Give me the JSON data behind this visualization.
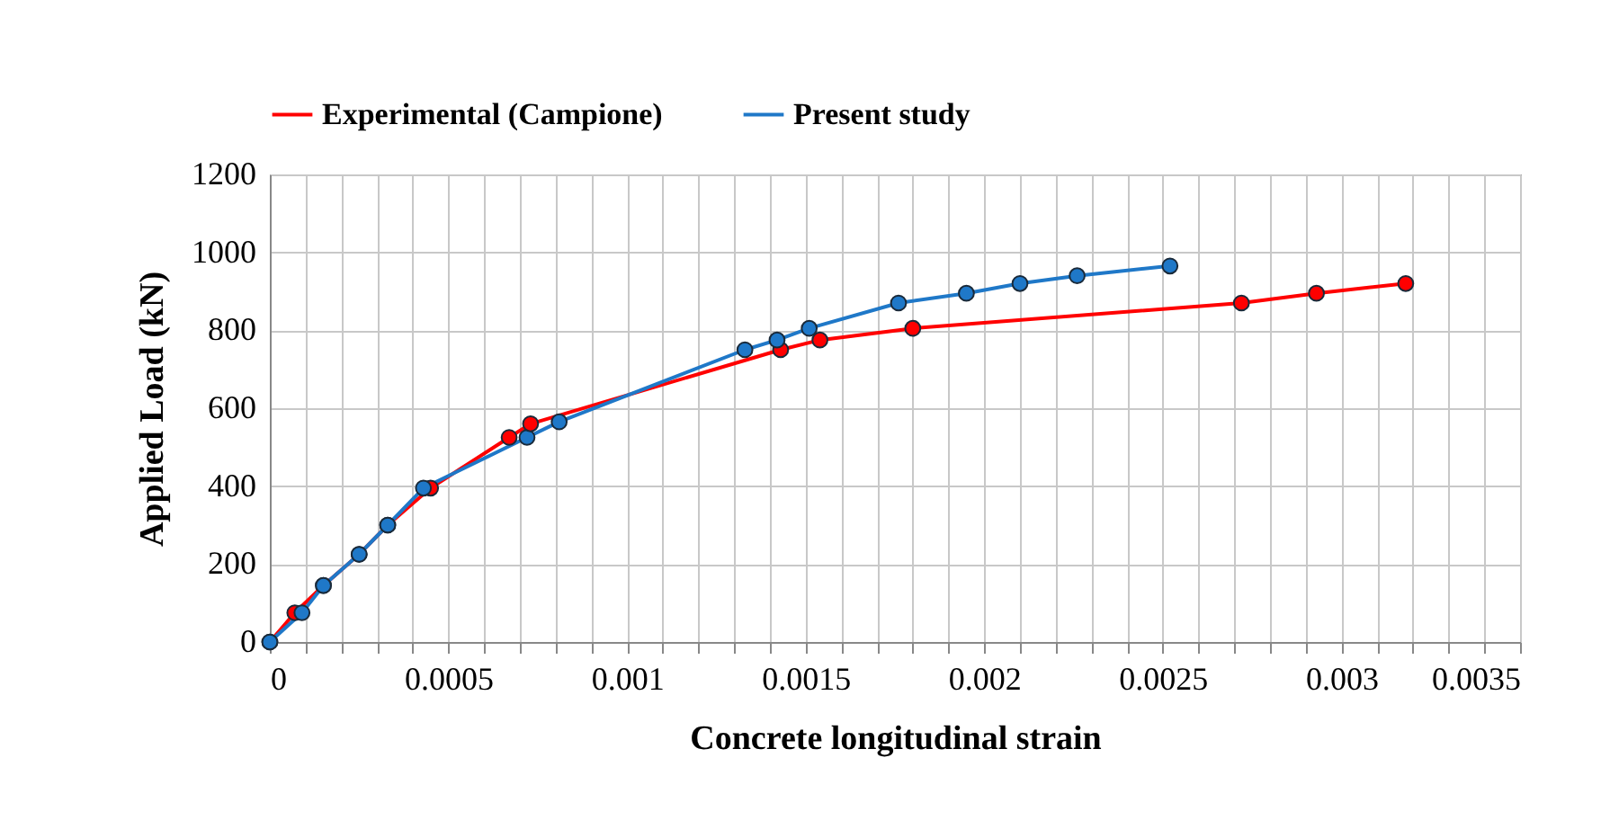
{
  "chart_data": {
    "type": "line",
    "xlabel": "Concrete longitudinal  strain",
    "ylabel": "Applied  Load (kN)",
    "xlim": [
      0,
      0.0035
    ],
    "ylim": [
      0,
      1200
    ],
    "xticks": [
      0,
      {
        "value": 0.0001,
        "label": null
      },
      {
        "value": 0.0002,
        "label": null
      },
      {
        "value": 0.0003,
        "label": null
      },
      {
        "value": 0.0004,
        "label": null
      },
      0.0005,
      {
        "value": 0.0006,
        "label": null
      },
      {
        "value": 0.0007,
        "label": null
      },
      {
        "value": 0.0008,
        "label": null
      },
      {
        "value": 0.0009,
        "label": null
      },
      0.001,
      {
        "value": 0.0011,
        "label": null
      },
      {
        "value": 0.0012,
        "label": null
      },
      {
        "value": 0.0013,
        "label": null
      },
      {
        "value": 0.0014,
        "label": null
      },
      0.0015,
      {
        "value": 0.0016,
        "label": null
      },
      {
        "value": 0.0017,
        "label": null
      },
      {
        "value": 0.0018,
        "label": null
      },
      {
        "value": 0.0019,
        "label": null
      },
      0.002,
      {
        "value": 0.0021,
        "label": null
      },
      {
        "value": 0.0022,
        "label": null
      },
      {
        "value": 0.0023,
        "label": null
      },
      {
        "value": 0.0024,
        "label": null
      },
      0.0025,
      {
        "value": 0.0026,
        "label": null
      },
      {
        "value": 0.0027,
        "label": null
      },
      {
        "value": 0.0028,
        "label": null
      },
      {
        "value": 0.0029,
        "label": null
      },
      0.003,
      {
        "value": 0.0031,
        "label": null
      },
      {
        "value": 0.0032,
        "label": null
      },
      {
        "value": 0.0033,
        "label": null
      },
      {
        "value": 0.0034,
        "label": null
      },
      0.0035
    ],
    "yticks": [
      0,
      200,
      400,
      600,
      800,
      1000,
      1200
    ],
    "grid": true,
    "legend": "top",
    "marker": "circle",
    "line_style": "solid",
    "series": [
      {
        "name": "Experimental (Campione)",
        "color": "#ff0000",
        "x": [
          0,
          7e-05,
          0.00015,
          0.00025,
          0.00033,
          0.00045,
          0.00067,
          0.00073,
          0.00143,
          0.00154,
          0.0018,
          0.00272,
          0.00293,
          0.00318
        ],
        "values": [
          0,
          75,
          145,
          225,
          300,
          395,
          525,
          560,
          750,
          775,
          805,
          870,
          895,
          920
        ]
      },
      {
        "name": "Present study",
        "color": "#1f78c8",
        "x": [
          0,
          9e-05,
          0.00015,
          0.00025,
          0.00033,
          0.00043,
          0.00072,
          0.00081,
          0.00133,
          0.00142,
          0.00151,
          0.00176,
          0.00195,
          0.0021,
          0.00226,
          0.00252
        ],
        "values": [
          0,
          75,
          145,
          225,
          300,
          395,
          525,
          565,
          750,
          775,
          805,
          870,
          895,
          920,
          940,
          965
        ]
      }
    ]
  }
}
